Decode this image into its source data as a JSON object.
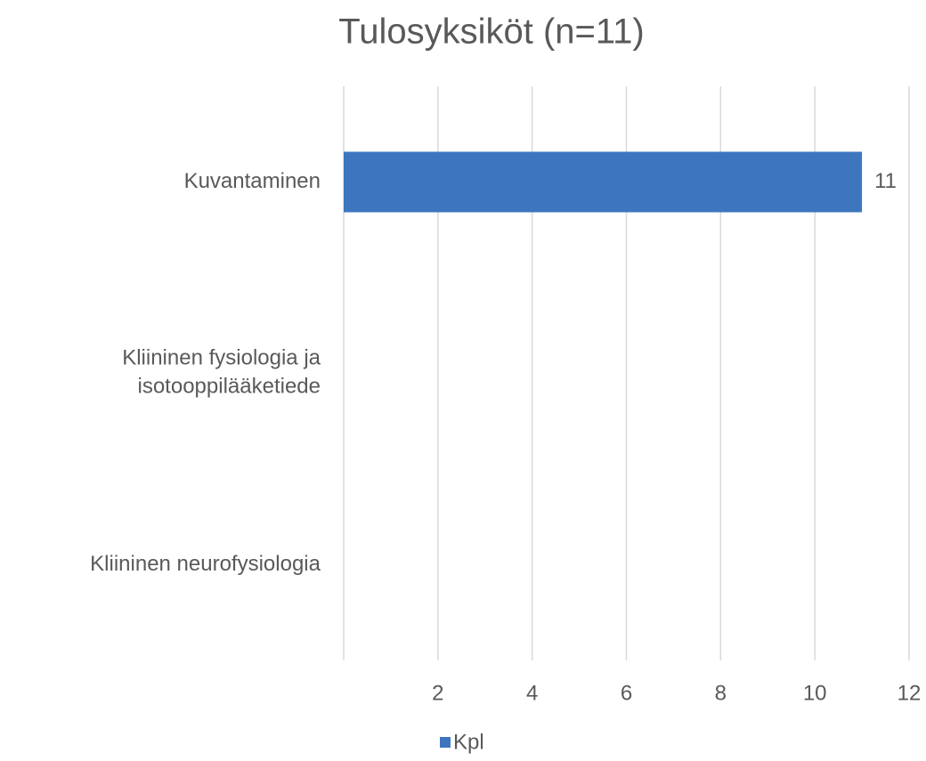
{
  "chart_data": {
    "type": "hbar",
    "title": "Tulosyksiköt (n=11)",
    "categories": [
      "Kuvantaminen",
      "Kliininen fysiologia ja isotooppilääketiede",
      "Kliininen neurofysiologia"
    ],
    "series": [
      {
        "name": "Kpl",
        "color": "#3d76bf",
        "values": [
          11,
          null,
          null
        ]
      }
    ],
    "xlim": [
      0,
      12
    ],
    "xticks": [
      2,
      4,
      6,
      8,
      10,
      12
    ],
    "grid": true,
    "legend": "bottom"
  }
}
